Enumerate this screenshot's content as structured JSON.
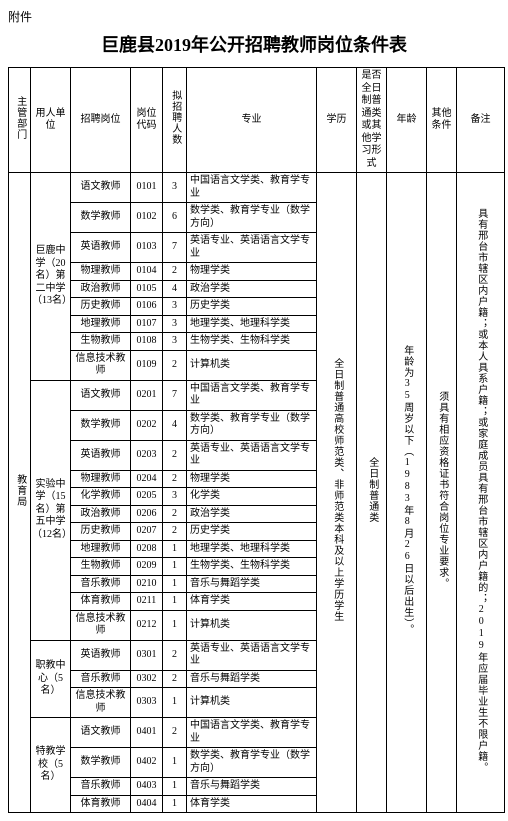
{
  "attachment_label": "附件",
  "title": "巨鹿县2019年公开招聘教师岗位条件表",
  "headers": {
    "c0": "主管部门",
    "c1": "用人单位",
    "c2": "招聘岗位",
    "c3": "岗位代码",
    "c4": "拟招聘人数",
    "c5": "专业",
    "c6": "学历",
    "c7": "是否全日制普通类或其他学习形式",
    "c8": "年龄",
    "c9": "其他条件",
    "c10": "备注"
  },
  "dept": "教育局",
  "units": [
    {
      "name": "巨鹿中学（20名）第二中学（13名）",
      "rowspan": 9
    },
    {
      "name": "实验中学（15名）第五中学（12名）",
      "rowspan": 12
    },
    {
      "name": "职教中心（5名）",
      "rowspan": 3
    },
    {
      "name": "特教学校（5名）",
      "rowspan": 4
    }
  ],
  "rows": [
    {
      "post": "语文教师",
      "code": "0101",
      "num": "3",
      "major": "中国语言文学类、教育学专业"
    },
    {
      "post": "数学教师",
      "code": "0102",
      "num": "6",
      "major": "数学类、教育学专业（数学方向）"
    },
    {
      "post": "英语教师",
      "code": "0103",
      "num": "7",
      "major": "英语专业、英语语言文学专业"
    },
    {
      "post": "物理教师",
      "code": "0104",
      "num": "2",
      "major": "物理学类"
    },
    {
      "post": "政治教师",
      "code": "0105",
      "num": "4",
      "major": "政治学类"
    },
    {
      "post": "历史教师",
      "code": "0106",
      "num": "3",
      "major": "历史学类"
    },
    {
      "post": "地理教师",
      "code": "0107",
      "num": "3",
      "major": "地理学类、地理科学类"
    },
    {
      "post": "生物教师",
      "code": "0108",
      "num": "3",
      "major": "生物学类、生物科学类"
    },
    {
      "post": "信息技术教师",
      "code": "0109",
      "num": "2",
      "major": "计算机类"
    },
    {
      "post": "语文教师",
      "code": "0201",
      "num": "7",
      "major": "中国语言文学类、教育学专业"
    },
    {
      "post": "数学教师",
      "code": "0202",
      "num": "4",
      "major": "数学类、教育学专业（数学方向）"
    },
    {
      "post": "英语教师",
      "code": "0203",
      "num": "2",
      "major": "英语专业、英语语言文学专业"
    },
    {
      "post": "物理教师",
      "code": "0204",
      "num": "2",
      "major": "物理学类"
    },
    {
      "post": "化学教师",
      "code": "0205",
      "num": "3",
      "major": "化学类"
    },
    {
      "post": "政治教师",
      "code": "0206",
      "num": "2",
      "major": "政治学类"
    },
    {
      "post": "历史教师",
      "code": "0207",
      "num": "2",
      "major": "历史学类"
    },
    {
      "post": "地理教师",
      "code": "0208",
      "num": "1",
      "major": "地理学类、地理科学类"
    },
    {
      "post": "生物教师",
      "code": "0209",
      "num": "1",
      "major": "生物学类、生物科学类"
    },
    {
      "post": "音乐教师",
      "code": "0210",
      "num": "1",
      "major": "音乐与舞蹈学类"
    },
    {
      "post": "体育教师",
      "code": "0211",
      "num": "1",
      "major": "体育学类"
    },
    {
      "post": "信息技术教师",
      "code": "0212",
      "num": "1",
      "major": "计算机类"
    },
    {
      "post": "英语教师",
      "code": "0301",
      "num": "2",
      "major": "英语专业、英语语言文学专业"
    },
    {
      "post": "音乐教师",
      "code": "0302",
      "num": "2",
      "major": "音乐与舞蹈学类"
    },
    {
      "post": "信息技术教师",
      "code": "0303",
      "num": "1",
      "major": "计算机类"
    },
    {
      "post": "语文教师",
      "code": "0401",
      "num": "2",
      "major": "中国语言文学类、教育学专业"
    },
    {
      "post": "数学教师",
      "code": "0402",
      "num": "1",
      "major": "数学类、教育学专业（数学方向）"
    },
    {
      "post": "音乐教师",
      "code": "0403",
      "num": "1",
      "major": "音乐与舞蹈学类"
    },
    {
      "post": "体育教师",
      "code": "0404",
      "num": "1",
      "major": "体育学类"
    }
  ],
  "edu": "全日制普通高校师范类、非师范类本科及以上学历学生",
  "form": "全日制普通类",
  "age": "年龄为35周岁以下（1983年8月26日以后出生）。",
  "other": "须具有相应资格证书符合岗位专业要求。",
  "note": "具有邢台市辖区内户籍；或本人具系户籍；或家庭成员具有邢台市辖区内户籍的；2019年应届毕业生不限户籍。"
}
